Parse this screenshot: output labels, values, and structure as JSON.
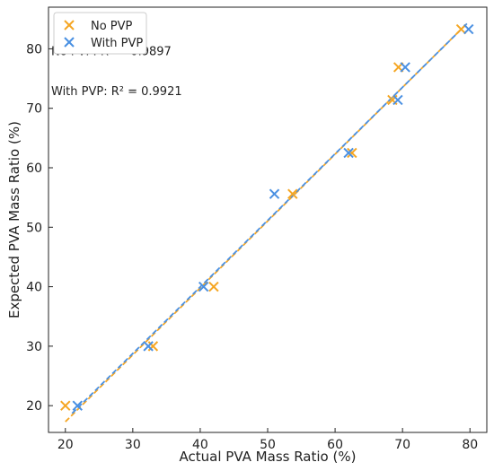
{
  "chart_data": {
    "type": "scatter",
    "xlabel": "Actual PVA Mass Ratio (%)",
    "ylabel": "Expected PVA Mass Ratio (%)",
    "xlim": [
      17.5,
      82.5
    ],
    "ylim": [
      15.5,
      87
    ],
    "xticks": [
      20,
      30,
      40,
      50,
      60,
      70,
      80
    ],
    "yticks": [
      20,
      30,
      40,
      50,
      60,
      70,
      80
    ],
    "grid": false,
    "legend_position": "top-left",
    "series": [
      {
        "name": "No PVP",
        "color": "#f5a623",
        "marker": "x",
        "points": [
          {
            "x": 20.0,
            "y": 20.0
          },
          {
            "x": 33.0,
            "y": 30.0
          },
          {
            "x": 42.0,
            "y": 40.0
          },
          {
            "x": 53.7,
            "y": 55.6
          },
          {
            "x": 62.5,
            "y": 62.5
          },
          {
            "x": 68.5,
            "y": 71.4
          },
          {
            "x": 69.4,
            "y": 76.9
          },
          {
            "x": 78.7,
            "y": 83.3
          }
        ],
        "fit": {
          "x0": 20.0,
          "y0": 17.3,
          "x1": 79.5,
          "y1": 84.2
        }
      },
      {
        "name": "With PVP",
        "color": "#4a90e2",
        "marker": "x",
        "points": [
          {
            "x": 21.8,
            "y": 20.0
          },
          {
            "x": 32.3,
            "y": 30.0
          },
          {
            "x": 40.5,
            "y": 40.0
          },
          {
            "x": 51.0,
            "y": 55.6
          },
          {
            "x": 62.0,
            "y": 62.5
          },
          {
            "x": 69.3,
            "y": 71.4
          },
          {
            "x": 70.4,
            "y": 76.9
          },
          {
            "x": 79.8,
            "y": 83.3
          }
        ],
        "fit": {
          "x0": 21.0,
          "y0": 18.7,
          "x1": 79.8,
          "y1": 84.5
        }
      }
    ],
    "annotations": [
      {
        "text": "No PVP: R² = 0.9897",
        "x": 17.9,
        "y": 78.9
      },
      {
        "text": "With PVP: R² = 0.9921",
        "x": 17.9,
        "y": 72.2
      }
    ]
  }
}
